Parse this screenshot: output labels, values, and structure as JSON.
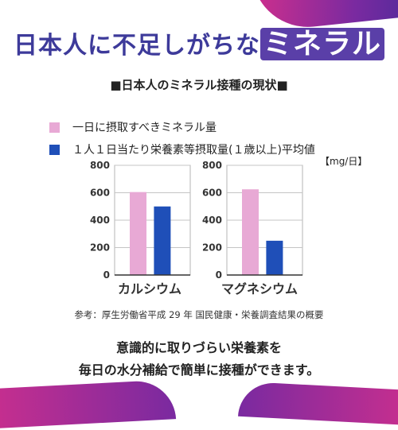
{
  "header": {
    "title_main": "日本人に不足しがちな",
    "title_accent": "ミネラル",
    "subtitle": "■日本人のミネラル接種の現状■"
  },
  "legend": [
    {
      "label": "一日に摂取すべきミネラル量",
      "color": "#e8a9d5"
    },
    {
      "label": "１人１日当たり栄養素等摂取量(１歳以上)平均値",
      "color": "#1f4fb8"
    }
  ],
  "unit": "【mg/日】",
  "chart_data": [
    {
      "type": "bar",
      "categories": [
        "カルシウム"
      ],
      "series": [
        {
          "values": [
            605
          ]
        },
        {
          "values": [
            500
          ]
        }
      ],
      "ylim": [
        0,
        800
      ],
      "yticks": [
        "0",
        "200",
        "400",
        "600",
        "800"
      ],
      "grid": true
    },
    {
      "type": "bar",
      "categories": [
        "マグネシウム"
      ],
      "series": [
        {
          "values": [
            625
          ]
        },
        {
          "values": [
            250
          ]
        }
      ],
      "ylim": [
        0,
        800
      ],
      "yticks": [
        "0",
        "200",
        "400",
        "600",
        "800"
      ],
      "grid": true
    }
  ],
  "footer": {
    "reference": "参考：厚生労働省平成 29 年 国民健康・栄養調査結果の概要",
    "message_line1": "意識的に取りづらい栄養素を",
    "message_line2": "毎日の水分補給で簡単に接種ができます。"
  }
}
